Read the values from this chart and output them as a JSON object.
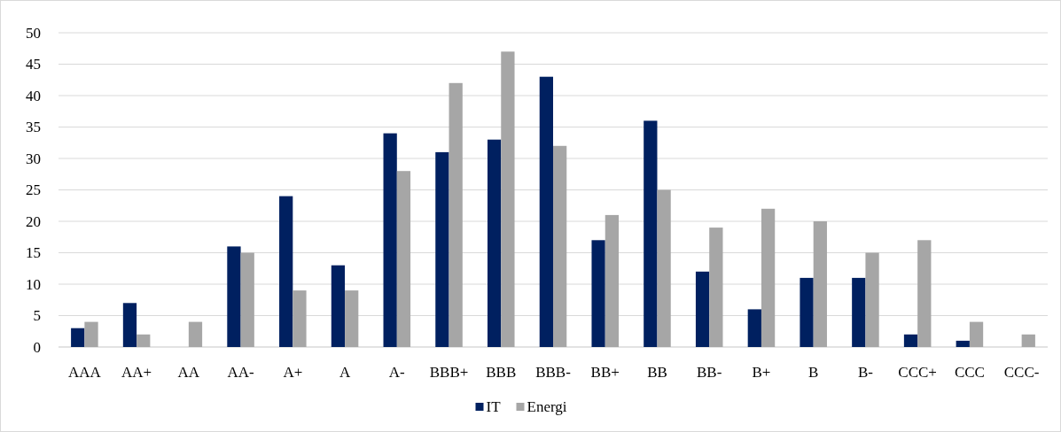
{
  "chart_data": {
    "type": "bar",
    "categories": [
      "AAA",
      "AA+",
      "AA",
      "AA-",
      "A+",
      "A",
      "A-",
      "BBB+",
      "BBB",
      "BBB-",
      "BB+",
      "BB",
      "BB-",
      "B+",
      "B",
      "B-",
      "CCC+",
      "CCC",
      "CCC-"
    ],
    "series": [
      {
        "name": "IT",
        "color": "#002060",
        "values": [
          3,
          7,
          0,
          16,
          24,
          13,
          34,
          31,
          33,
          43,
          17,
          36,
          12,
          6,
          11,
          11,
          2,
          1,
          0
        ]
      },
      {
        "name": "Energi",
        "color": "#a6a6a6",
        "values": [
          4,
          2,
          4,
          15,
          9,
          9,
          28,
          42,
          47,
          32,
          21,
          25,
          19,
          22,
          20,
          15,
          17,
          4,
          2
        ]
      }
    ],
    "ylim": [
      0,
      50
    ],
    "yticks": [
      0,
      5,
      10,
      15,
      20,
      25,
      30,
      35,
      40,
      45,
      50
    ],
    "grid": "y",
    "legend": "bottom"
  }
}
